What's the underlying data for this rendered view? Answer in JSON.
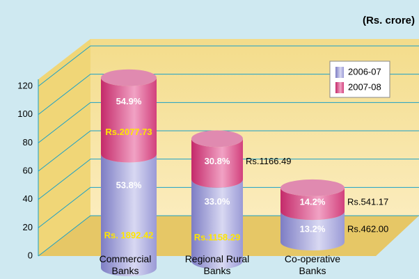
{
  "chart_data": {
    "type": "cylinder-stacked-bar",
    "title": "(Rs. crore)",
    "categories": [
      "Commercial Banks",
      "Regional Rural Banks",
      "Co-operative Banks"
    ],
    "series": [
      {
        "name": "2006-07",
        "color": "#8c8ccf",
        "values": [
          67,
          48,
          18
        ],
        "shares": [
          "53.8%",
          "33.0%",
          "13.2%"
        ],
        "labels": [
          "Rs. 1892.42",
          "Rs.1158.29",
          "Rs.462.00"
        ]
      },
      {
        "name": "2007-08",
        "color": "#d2407c",
        "values": [
          45,
          24,
          14
        ],
        "shares": [
          "54.9%",
          "30.8%",
          "14.2%"
        ],
        "labels": [
          "Rs.2077.73",
          "Rs.1166.49",
          "Rs.541.17"
        ]
      }
    ],
    "ylim": [
      0,
      120
    ],
    "yticks": [
      0,
      20,
      40,
      60,
      80,
      100,
      120
    ],
    "grid": true,
    "legend": "top-right"
  }
}
